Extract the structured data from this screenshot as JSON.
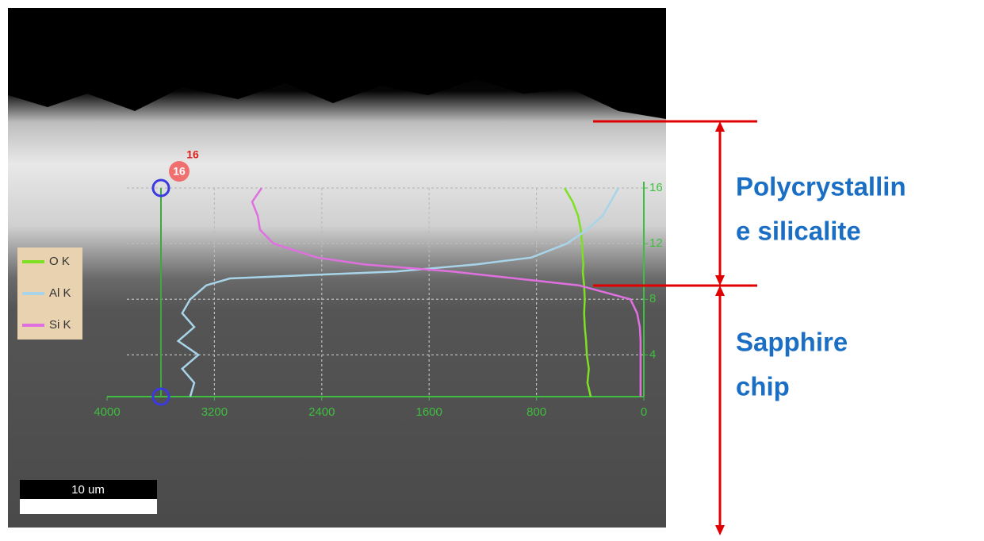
{
  "chart_data": {
    "type": "line",
    "orientation": "profile",
    "xlim": [
      4000,
      0
    ],
    "xticks": [
      4000,
      3200,
      2400,
      1600,
      800,
      0
    ],
    "ylim": [
      1,
      16
    ],
    "yticks": [
      4,
      8,
      12,
      16
    ],
    "grid": true,
    "y": [
      1,
      2,
      3,
      4,
      5,
      6,
      7,
      8,
      9,
      9.5,
      10,
      10.5,
      11,
      12,
      13,
      14,
      15,
      16
    ],
    "series": [
      {
        "name": "O K",
        "color": "#7ee022",
        "values": [
          396,
          420,
          410,
          425,
          430,
          440,
          445,
          440,
          445,
          450,
          455,
          450,
          455,
          460,
          470,
          490,
          530,
          591
        ]
      },
      {
        "name": "Al K",
        "color": "#a8d4ea",
        "values": [
          3380,
          3350,
          3440,
          3320,
          3470,
          3350,
          3440,
          3380,
          3260,
          3085,
          1843,
          1253,
          839,
          573,
          425,
          307,
          248,
          189
        ]
      },
      {
        "name": "Si K",
        "color": "#e070e0",
        "values": [
          24,
          24,
          24,
          24,
          24,
          30,
          50,
          100,
          484,
          957,
          1430,
          2080,
          2434,
          2759,
          2860,
          2877,
          2919,
          2848
        ]
      }
    ],
    "marker_labels": [
      "16",
      "16"
    ],
    "scale_bar": "10 um",
    "annotations": [
      {
        "lines": [
          "Polycrystallin",
          "e silicalite"
        ]
      },
      {
        "lines": [
          "Sapphire",
          "chip"
        ]
      }
    ]
  }
}
